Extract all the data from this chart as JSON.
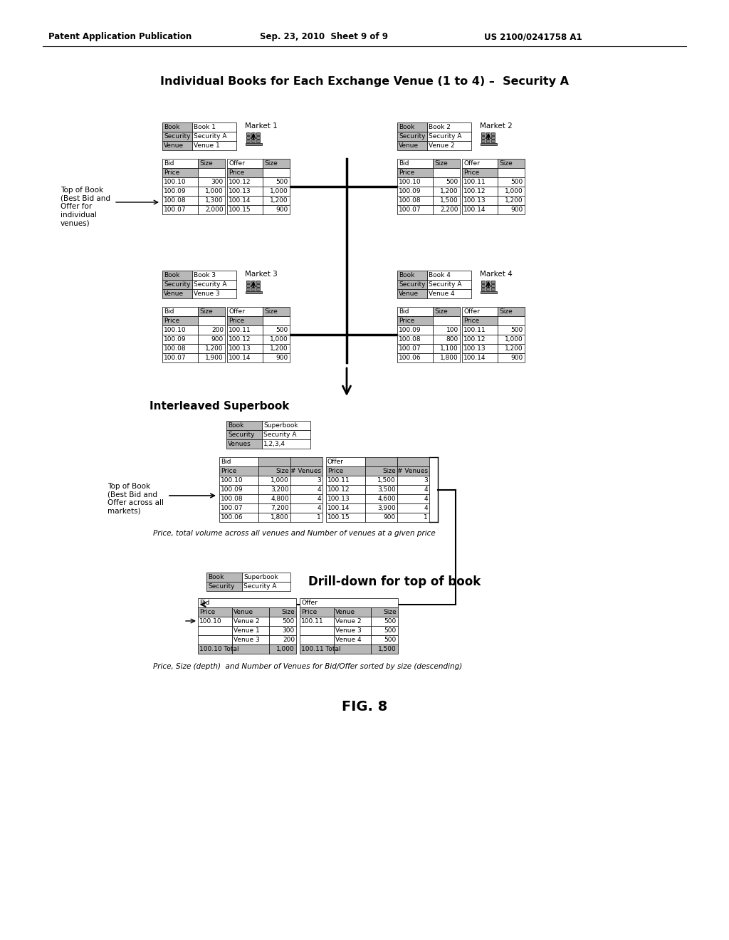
{
  "header_left": "Patent Application Publication",
  "header_mid": "Sep. 23, 2010  Sheet 9 of 9",
  "header_right": "US 2100/0241758 A1",
  "main_title": "Individual Books for Each Exchange Venue (1 to 4) –  Security A",
  "bg_color": "#ffffff",
  "cell_bg_gray": "#b8b8b8",
  "cell_bg_white": "#ffffff",
  "border_color": "#000000",
  "text_color": "#000000",
  "book1_header": [
    [
      "Book",
      "Book 1"
    ],
    [
      "Security",
      "Security A"
    ],
    [
      "Venue",
      "Venue 1"
    ]
  ],
  "book2_header": [
    [
      "Book",
      "Book 2"
    ],
    [
      "Security",
      "Security A"
    ],
    [
      "Venue",
      "Venue 2"
    ]
  ],
  "book3_header": [
    [
      "Book",
      "Book 3"
    ],
    [
      "Security",
      "Security A"
    ],
    [
      "Venue",
      "Venue 3"
    ]
  ],
  "book4_header": [
    [
      "Book",
      "Book 4"
    ],
    [
      "Security",
      "Security A"
    ],
    [
      "Venue",
      "Venue 4"
    ]
  ],
  "book1_bid_data": [
    [
      "100.10",
      "300"
    ],
    [
      "100.09",
      "1,000"
    ],
    [
      "100.08",
      "1,300"
    ],
    [
      "100.07",
      "2,000"
    ]
  ],
  "book1_offer_data": [
    [
      "100.12",
      "500"
    ],
    [
      "100.13",
      "1,000"
    ],
    [
      "100.14",
      "1,200"
    ],
    [
      "100.15",
      "900"
    ]
  ],
  "book2_bid_data": [
    [
      "100.10",
      "500"
    ],
    [
      "100.09",
      "1,200"
    ],
    [
      "100.08",
      "1,500"
    ],
    [
      "100.07",
      "2,200"
    ]
  ],
  "book2_offer_data": [
    [
      "100.11",
      "500"
    ],
    [
      "100.12",
      "1,000"
    ],
    [
      "100.13",
      "1,200"
    ],
    [
      "100.14",
      "900"
    ]
  ],
  "book3_bid_data": [
    [
      "100.10",
      "200"
    ],
    [
      "100.09",
      "900"
    ],
    [
      "100.08",
      "1,200"
    ],
    [
      "100.07",
      "1,900"
    ]
  ],
  "book3_offer_data": [
    [
      "100.11",
      "500"
    ],
    [
      "100.12",
      "1,000"
    ],
    [
      "100.13",
      "1,200"
    ],
    [
      "100.14",
      "900"
    ]
  ],
  "book4_bid_data": [
    [
      "100.09",
      "100"
    ],
    [
      "100.08",
      "800"
    ],
    [
      "100.07",
      "1,100"
    ],
    [
      "100.06",
      "1,800"
    ]
  ],
  "book4_offer_data": [
    [
      "100.11",
      "500"
    ],
    [
      "100.12",
      "1,000"
    ],
    [
      "100.13",
      "1,200"
    ],
    [
      "100.14",
      "900"
    ]
  ],
  "superbook_header": [
    [
      "Book",
      "Superbook"
    ],
    [
      "Security",
      "Security A"
    ],
    [
      "Venues",
      "1,2,3,4"
    ]
  ],
  "superbook_bid_data": [
    [
      "100.10",
      "1,000",
      "3"
    ],
    [
      "100.09",
      "3,200",
      "4"
    ],
    [
      "100.08",
      "4,800",
      "4"
    ],
    [
      "100.07",
      "7,200",
      "4"
    ],
    [
      "100.06",
      "1,800",
      "1"
    ]
  ],
  "superbook_offer_data": [
    [
      "100.11",
      "1,500",
      "3"
    ],
    [
      "100.12",
      "3,500",
      "4"
    ],
    [
      "100.13",
      "4,600",
      "4"
    ],
    [
      "100.14",
      "3,900",
      "4"
    ],
    [
      "100.15",
      "900",
      "1"
    ]
  ],
  "drilldown_header": [
    [
      "Book",
      "Superbook"
    ],
    [
      "Security",
      "Security A"
    ]
  ],
  "drilldown_bid_data": [
    [
      "100.10",
      "Venue 2",
      "500"
    ],
    [
      "",
      "Venue 1",
      "300"
    ],
    [
      "",
      "Venue 3",
      "200"
    ],
    [
      "100.10 Total",
      "",
      "1,000"
    ]
  ],
  "drilldown_offer_data": [
    [
      "100.11",
      "Venue 2",
      "500"
    ],
    [
      "",
      "Venue 3",
      "500"
    ],
    [
      "",
      "Venue 4",
      "500"
    ],
    [
      "100.11 Total",
      "",
      "1,500"
    ]
  ],
  "label_top_of_book_1": "Top of Book\n(Best Bid and\nOffer for\nindividual\nvenues)",
  "label_top_of_book_2": "Top of Book\n(Best Bid and\nOffer across all\nmarkets)",
  "label_interleaved": "Interleaved Superbook",
  "label_drilldown": "Drill-down for top of book",
  "label_price_note_1": "Price, total volume across all venues and Number of venues at a given price",
  "label_price_note_2": "Price, Size (depth)  and Number of Venues for Bid/Offer sorted by size (descending)",
  "fig_label": "FIG. 8"
}
